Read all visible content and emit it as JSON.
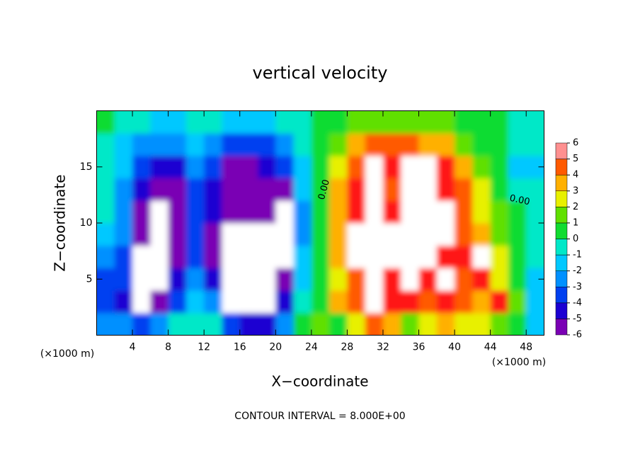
{
  "chart_data": {
    "type": "contour",
    "title": "vertical velocity",
    "xlabel": "X−coordinate",
    "ylabel": "Z−coordinate",
    "x_unit_label": "(×1000 m)",
    "y_unit_label": "(×1000 m)",
    "footer": "CONTOUR INTERVAL = 8.000E+00",
    "contour_labels": [
      "0.00",
      "0.00"
    ],
    "xlim": [
      0,
      50
    ],
    "ylim": [
      0,
      20
    ],
    "xticks": [
      4,
      8,
      12,
      16,
      20,
      24,
      28,
      32,
      36,
      40,
      44,
      48
    ],
    "yticks": [
      5,
      10,
      15
    ],
    "x": [
      1,
      3,
      5,
      7,
      9,
      11,
      13,
      15,
      17,
      19,
      21,
      23,
      25,
      27,
      29,
      31,
      33,
      35,
      37,
      39,
      41,
      43,
      45,
      47,
      49
    ],
    "y": [
      1,
      3,
      5,
      7,
      9,
      11,
      13,
      15,
      17,
      19
    ],
    "z": [
      [
        -2,
        -2,
        -3,
        -2,
        -0.5,
        0,
        0,
        -3,
        -4,
        -4,
        -2,
        0.5,
        2,
        1,
        3,
        5,
        4,
        2,
        3,
        4,
        3,
        3,
        2,
        1,
        -1
      ],
      [
        -3,
        -4,
        -8,
        -6,
        -3,
        -1,
        -2,
        -7,
        -8,
        -8,
        -4,
        0,
        1,
        4,
        5,
        7,
        6,
        6,
        5,
        6,
        5,
        4,
        6,
        2,
        -1.5
      ],
      [
        -3,
        -3.5,
        -8,
        -7,
        -4,
        -2,
        -4,
        -8,
        -8,
        -8,
        -6,
        -1,
        0.5,
        3,
        5,
        7,
        6,
        7,
        6,
        7,
        5,
        6,
        3,
        1,
        -1
      ],
      [
        -2,
        -3,
        -7,
        -8,
        -5,
        -3,
        -5,
        -8,
        -8,
        -8,
        -7,
        -1.5,
        0.5,
        4,
        7,
        7,
        6.5,
        8,
        7.5,
        6,
        6,
        7,
        3,
        1,
        -0.5
      ],
      [
        -1,
        -2.5,
        -6,
        -8,
        -5.5,
        -3,
        -5,
        -7,
        -8,
        -8,
        -7,
        -2,
        0.5,
        4,
        6.5,
        7,
        7,
        8,
        8,
        6.5,
        5,
        4,
        2,
        0.5,
        0
      ],
      [
        -0.5,
        -2,
        -5,
        -7,
        -5.5,
        -3,
        -4.5,
        -5.5,
        -5,
        -5,
        -7,
        -2,
        0.5,
        4,
        6,
        7,
        6,
        8,
        8,
        7,
        5,
        3,
        1.5,
        0.5,
        0
      ],
      [
        0,
        -2,
        -4.5,
        -5.5,
        -5,
        -3,
        -4,
        -5.5,
        -5,
        -5,
        -5,
        -1.5,
        0.5,
        3.5,
        5.5,
        7,
        5,
        8,
        8,
        6,
        5,
        3,
        1,
        0,
        0
      ],
      [
        0,
        -1.5,
        -3.5,
        -4.5,
        -4,
        -2.5,
        -3,
        -5,
        -5,
        -4.5,
        -3.5,
        -1,
        0.5,
        3,
        5,
        6.5,
        5.5,
        7,
        7,
        5.5,
        4,
        1.5,
        0.5,
        -1,
        -1
      ],
      [
        0,
        -1,
        -2,
        -2.5,
        -2,
        -1.5,
        -2,
        -3,
        -3.5,
        -3,
        -2,
        -0.5,
        0.5,
        2,
        4,
        4.5,
        4.5,
        4.5,
        4,
        3.5,
        2,
        1,
        0.5,
        0,
        -0.5
      ],
      [
        0.5,
        0,
        -0.5,
        -1,
        -1,
        -0.5,
        -0.5,
        -1,
        -1,
        -1,
        -0.5,
        0,
        0.5,
        1,
        1.5,
        2,
        2,
        2,
        2,
        1.5,
        1,
        0.5,
        0.5,
        0,
        0
      ]
    ],
    "colorbar_ticks": [
      -6,
      -5,
      -4,
      -3,
      -2,
      -1,
      0,
      1,
      2,
      3,
      4,
      5,
      6
    ],
    "colorbar_colors": [
      "#7a00b4",
      "#1c00d2",
      "#0040f0",
      "#0090ff",
      "#00c8ff",
      "#00e8c8",
      "#10dc30",
      "#60e000",
      "#e8f000",
      "#ffb000",
      "#ff5a00",
      "#ff1818"
    ],
    "out_of_range_color": "#ffffff",
    "top_color": "#ff9090"
  }
}
